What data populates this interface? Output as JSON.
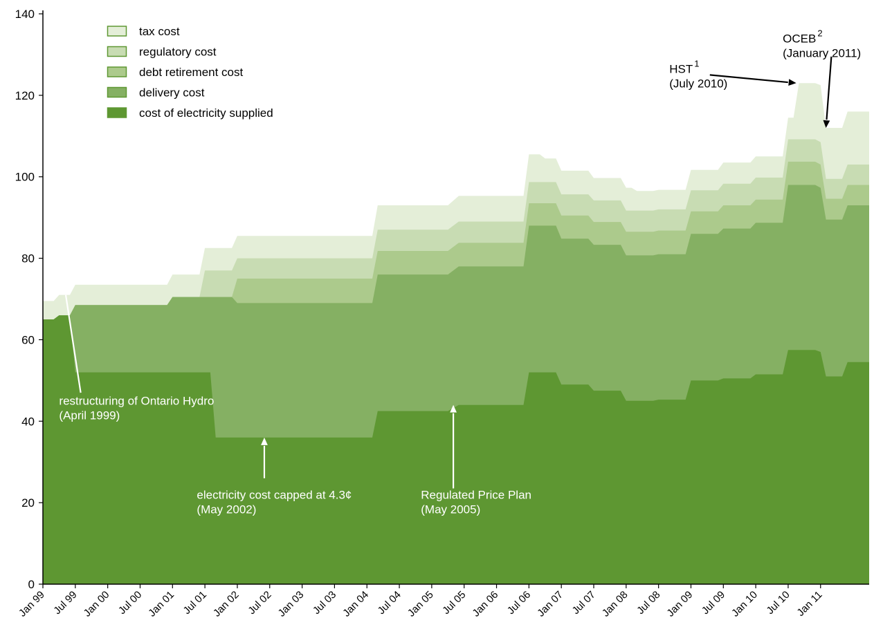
{
  "chart_data": {
    "type": "area",
    "stacked": true,
    "title": "",
    "xlabel": "",
    "ylabel": "",
    "ylim": [
      0,
      140
    ],
    "yticks": [
      0,
      20,
      40,
      60,
      80,
      100,
      120,
      140
    ],
    "x_tick_labels": [
      "Jan 99",
      "Jul 99",
      "Jan 00",
      "Jul 00",
      "Jan 01",
      "Jul 01",
      "Jan 02",
      "Jul 02",
      "Jan 03",
      "Jul 03",
      "Jan 04",
      "Jul 04",
      "Jan 05",
      "Jul 05",
      "Jan 06",
      "Jul 06",
      "Jan 07",
      "Jul 07",
      "Jan 08",
      "Jul 08",
      "Jan 09",
      "Jul 09",
      "Jan 10",
      "Jul 10",
      "Jan 11"
    ],
    "x_range_months": [
      0,
      153
    ],
    "grid": false,
    "legend_position": "top-left",
    "legend": [
      "tax cost",
      "regulatory cost",
      "debt retirement cost",
      "delivery cost",
      "cost of electricity supplied"
    ],
    "series": [
      {
        "name": "cost of electricity supplied",
        "color": "#5e9732",
        "values": [
          [
            0,
            65
          ],
          [
            2,
            65
          ],
          [
            3,
            66
          ],
          [
            5,
            66
          ],
          [
            6,
            52
          ],
          [
            30,
            52
          ],
          [
            31,
            52
          ],
          [
            32,
            36
          ],
          [
            61,
            36
          ],
          [
            62,
            42.5
          ],
          [
            75,
            42.5
          ],
          [
            77,
            44
          ],
          [
            89,
            44
          ],
          [
            90,
            52
          ],
          [
            95,
            52
          ],
          [
            96,
            49
          ],
          [
            101,
            49
          ],
          [
            102,
            47.5
          ],
          [
            107,
            47.5
          ],
          [
            108,
            45
          ],
          [
            113,
            45
          ],
          [
            114,
            45.3
          ],
          [
            119,
            45.3
          ],
          [
            120,
            50
          ],
          [
            125,
            50
          ],
          [
            126,
            50.5
          ],
          [
            131,
            50.5
          ],
          [
            132,
            51.5
          ],
          [
            137,
            51.5
          ],
          [
            138,
            57.5
          ],
          [
            143,
            57.5
          ],
          [
            144,
            57
          ],
          [
            145,
            51
          ],
          [
            148,
            51
          ],
          [
            149,
            54.5
          ],
          [
            153,
            54.5
          ]
        ]
      },
      {
        "name": "delivery cost",
        "color": "#85b063",
        "values": [
          [
            0,
            65
          ],
          [
            2,
            65
          ],
          [
            3,
            66
          ],
          [
            5,
            66
          ],
          [
            6,
            68.5
          ],
          [
            23,
            68.5
          ],
          [
            24,
            70.5
          ],
          [
            35,
            70.5
          ],
          [
            36,
            69
          ],
          [
            61,
            69
          ],
          [
            62,
            76
          ],
          [
            75,
            76
          ],
          [
            77,
            78
          ],
          [
            89,
            78
          ],
          [
            90,
            88
          ],
          [
            95,
            88
          ],
          [
            96,
            84.8
          ],
          [
            101,
            84.8
          ],
          [
            102,
            83.3
          ],
          [
            107,
            83.3
          ],
          [
            108,
            80.7
          ],
          [
            113,
            80.7
          ],
          [
            114,
            81
          ],
          [
            119,
            81
          ],
          [
            120,
            86
          ],
          [
            125,
            86
          ],
          [
            126,
            87.3
          ],
          [
            131,
            87.3
          ],
          [
            132,
            88.7
          ],
          [
            137,
            88.7
          ],
          [
            138,
            98
          ],
          [
            143,
            98
          ],
          [
            144,
            97.3
          ],
          [
            145,
            89.5
          ],
          [
            148,
            89.5
          ],
          [
            149,
            93
          ],
          [
            153,
            93
          ]
        ]
      },
      {
        "name": "debt retirement cost",
        "color": "#acca8c",
        "values": [
          [
            0,
            65
          ],
          [
            2,
            65
          ],
          [
            3,
            66
          ],
          [
            5,
            66
          ],
          [
            6,
            68.5
          ],
          [
            23,
            68.5
          ],
          [
            24,
            70.5
          ],
          [
            35,
            70.5
          ],
          [
            36,
            75
          ],
          [
            61,
            75
          ],
          [
            62,
            81.8
          ],
          [
            75,
            81.8
          ],
          [
            77,
            83.8
          ],
          [
            89,
            83.8
          ],
          [
            90,
            93.5
          ],
          [
            95,
            93.5
          ],
          [
            96,
            90.5
          ],
          [
            101,
            90.5
          ],
          [
            102,
            88.9
          ],
          [
            107,
            88.9
          ],
          [
            108,
            86.5
          ],
          [
            113,
            86.5
          ],
          [
            114,
            86.8
          ],
          [
            119,
            86.8
          ],
          [
            120,
            91.5
          ],
          [
            125,
            91.5
          ],
          [
            126,
            93
          ],
          [
            131,
            93
          ],
          [
            132,
            94.4
          ],
          [
            137,
            94.4
          ],
          [
            138,
            103.7
          ],
          [
            143,
            103.7
          ],
          [
            144,
            103
          ],
          [
            145,
            94.6
          ],
          [
            148,
            94.6
          ],
          [
            149,
            98
          ],
          [
            153,
            98
          ]
        ]
      },
      {
        "name": "regulatory cost",
        "color": "#c8dcb3",
        "values": [
          [
            0,
            65
          ],
          [
            2,
            65
          ],
          [
            3,
            66
          ],
          [
            5,
            66
          ],
          [
            6,
            68.5
          ],
          [
            23,
            68.5
          ],
          [
            24,
            70.5
          ],
          [
            29,
            70.5
          ],
          [
            30,
            77
          ],
          [
            35,
            77
          ],
          [
            36,
            80
          ],
          [
            61,
            80
          ],
          [
            62,
            87
          ],
          [
            75,
            87
          ],
          [
            77,
            89
          ],
          [
            89,
            89
          ],
          [
            90,
            98.7
          ],
          [
            95,
            98.7
          ],
          [
            96,
            95.7
          ],
          [
            101,
            95.7
          ],
          [
            102,
            94.2
          ],
          [
            107,
            94.2
          ],
          [
            108,
            91.7
          ],
          [
            113,
            91.7
          ],
          [
            114,
            92
          ],
          [
            119,
            92
          ],
          [
            120,
            96.7
          ],
          [
            125,
            96.7
          ],
          [
            126,
            98.3
          ],
          [
            131,
            98.3
          ],
          [
            132,
            99.8
          ],
          [
            137,
            99.8
          ],
          [
            138,
            109.2
          ],
          [
            143,
            109.2
          ],
          [
            144,
            108.5
          ],
          [
            145,
            99.5
          ],
          [
            148,
            99.5
          ],
          [
            149,
            103
          ],
          [
            153,
            103
          ]
        ]
      },
      {
        "name": "tax cost",
        "color": "#e4eed8",
        "values": [
          [
            0,
            69.5
          ],
          [
            2,
            69.5
          ],
          [
            3,
            71
          ],
          [
            5,
            71
          ],
          [
            6,
            73.5
          ],
          [
            23,
            73.5
          ],
          [
            24,
            76
          ],
          [
            29,
            76
          ],
          [
            30,
            82.5
          ],
          [
            35,
            82.5
          ],
          [
            36,
            85.5
          ],
          [
            61,
            85.5
          ],
          [
            62,
            93
          ],
          [
            75,
            93
          ],
          [
            77,
            95.3
          ],
          [
            89,
            95.3
          ],
          [
            90,
            105.5
          ],
          [
            92,
            105.5
          ],
          [
            93,
            104.5
          ],
          [
            95,
            104.5
          ],
          [
            96,
            101.5
          ],
          [
            101,
            101.5
          ],
          [
            102,
            99.7
          ],
          [
            107,
            99.7
          ],
          [
            108,
            97.3
          ],
          [
            109,
            97.3
          ],
          [
            110,
            96.5
          ],
          [
            113,
            96.5
          ],
          [
            114,
            96.8
          ],
          [
            119,
            96.8
          ],
          [
            120,
            101.7
          ],
          [
            125,
            101.7
          ],
          [
            126,
            103.5
          ],
          [
            131,
            103.5
          ],
          [
            132,
            105
          ],
          [
            137,
            105
          ],
          [
            138,
            114.5
          ],
          [
            139,
            114.5
          ],
          [
            140,
            123
          ],
          [
            143,
            123
          ],
          [
            144,
            122.5
          ],
          [
            145,
            112
          ],
          [
            148,
            112
          ],
          [
            149,
            116
          ],
          [
            153,
            116
          ]
        ]
      }
    ],
    "annotations": [
      {
        "lines": [
          "restructuring of Ontario Hydro",
          "(April 1999)"
        ],
        "arrow_to": [
          4,
          73
        ],
        "arrow_from": [
          7,
          47
        ],
        "text_at": [
          3,
          44
        ],
        "color": "#ffffff"
      },
      {
        "lines": [
          "electricity cost capped at 4.3¢",
          "(May 2002)"
        ],
        "arrow_to": [
          41,
          36
        ],
        "arrow_from": [
          41,
          26
        ],
        "text_at": [
          28.5,
          21
        ],
        "color": "#ffffff"
      },
      {
        "lines": [
          "Regulated Price Plan",
          "(May 2005)"
        ],
        "arrow_to": [
          76,
          44
        ],
        "arrow_from": [
          76,
          23.5
        ],
        "text_at": [
          70,
          21
        ],
        "color": "#ffffff"
      },
      {
        "lines": [
          "HST",
          "(July 2010)"
        ],
        "superscript": "1",
        "arrow_to": [
          139.5,
          123
        ],
        "arrow_from": [
          123.5,
          125
        ],
        "text_at": [
          116,
          125.5
        ],
        "color": "#000000"
      },
      {
        "lines": [
          "OCEB",
          "(January 2011)"
        ],
        "superscript": "2",
        "arrow_to": [
          145,
          112
        ],
        "arrow_from": [
          146,
          129.5
        ],
        "text_at": [
          137,
          133
        ],
        "color": "#000000"
      }
    ]
  }
}
